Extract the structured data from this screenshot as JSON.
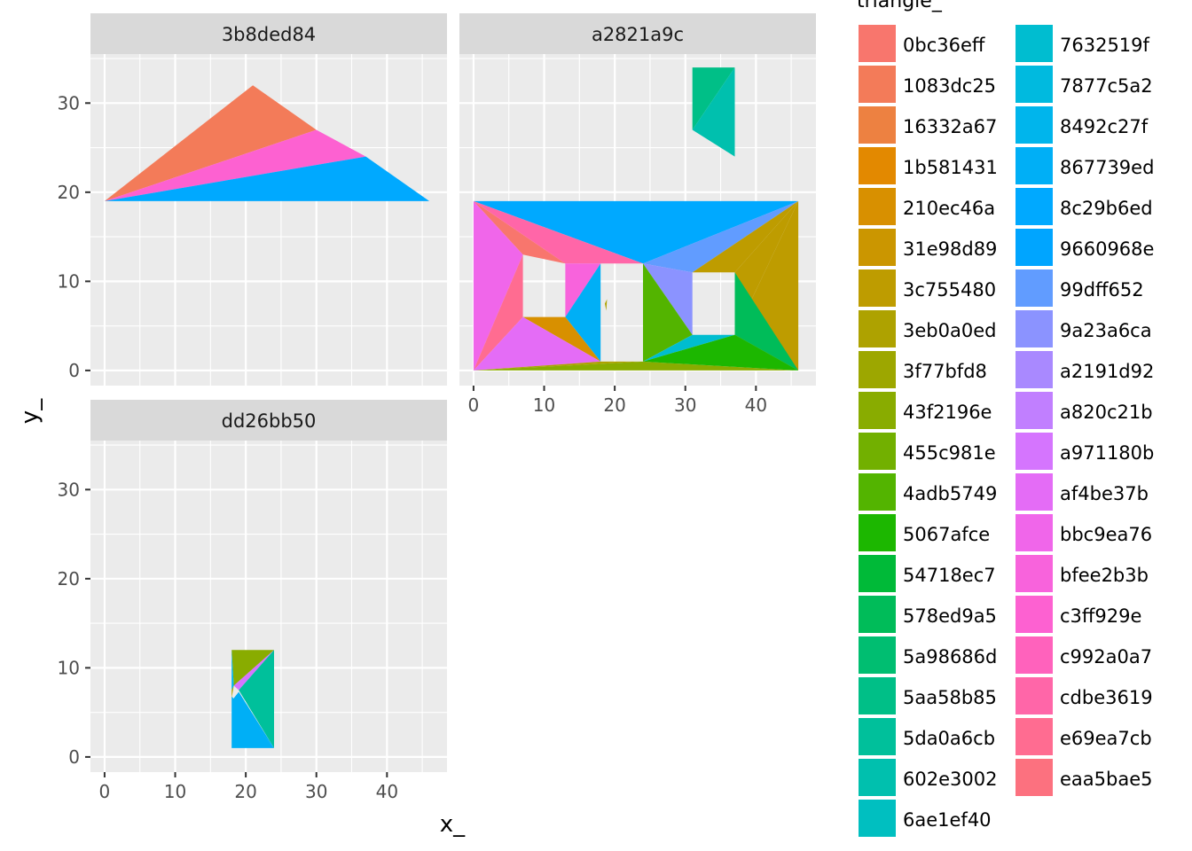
{
  "chart_data": {
    "type": "polygon",
    "xlabel": "x_",
    "ylabel": "y_",
    "legend_title": "triangle_",
    "legend_position": "right",
    "grid": true,
    "xlim": [
      -2,
      48.5
    ],
    "ylim": [
      -1.7,
      35.5
    ],
    "x_ticks": [
      0,
      10,
      20,
      30,
      40
    ],
    "y_ticks": [
      0,
      10,
      20,
      30
    ],
    "legend": [
      {
        "label": "0bc36eff",
        "color": "#F8766D"
      },
      {
        "label": "1083dc25",
        "color": "#F37B59"
      },
      {
        "label": "16332a67",
        "color": "#ED8141"
      },
      {
        "label": "1b581431",
        "color": "#E38900"
      },
      {
        "label": "210ec46a",
        "color": "#D89000"
      },
      {
        "label": "31e98d89",
        "color": "#CB9600"
      },
      {
        "label": "3c755480",
        "color": "#BE9C00"
      },
      {
        "label": "3eb0a0ed",
        "color": "#AEA200"
      },
      {
        "label": "3f77bfd8",
        "color": "#9DA700"
      },
      {
        "label": "43f2196e",
        "color": "#89AC00"
      },
      {
        "label": "455c981e",
        "color": "#72B000"
      },
      {
        "label": "4adb5749",
        "color": "#53B400"
      },
      {
        "label": "5067afce",
        "color": "#1CB700"
      },
      {
        "label": "54718ec7",
        "color": "#00BA38"
      },
      {
        "label": "578ed9a5",
        "color": "#00BC59"
      },
      {
        "label": "5a98686d",
        "color": "#00BE71"
      },
      {
        "label": "5aa58b85",
        "color": "#00BF87"
      },
      {
        "label": "5da0a6cb",
        "color": "#00C09B"
      },
      {
        "label": "602e3002",
        "color": "#00C0AE"
      },
      {
        "label": "6ae1ef40",
        "color": "#00BFC0"
      },
      {
        "label": "7632519f",
        "color": "#00BDD0"
      },
      {
        "label": "7877c5a2",
        "color": "#00BADF"
      },
      {
        "label": "8492c27f",
        "color": "#00B5EC"
      },
      {
        "label": "867739ed",
        "color": "#00AFF6"
      },
      {
        "label": "8c29b6ed",
        "color": "#00A9FF"
      },
      {
        "label": "9660968e",
        "color": "#00A5FF"
      },
      {
        "label": "99dff652",
        "color": "#619CFF"
      },
      {
        "label": "9a23a6ca",
        "color": "#8B93FF"
      },
      {
        "label": "a2191d92",
        "color": "#A989FF"
      },
      {
        "label": "a820c21b",
        "color": "#C17FFF"
      },
      {
        "label": "a971180b",
        "color": "#D575FE"
      },
      {
        "label": "af4be37b",
        "color": "#E46CF6"
      },
      {
        "label": "bbc9ea76",
        "color": "#F066EA"
      },
      {
        "label": "bfee2b3b",
        "color": "#F863DC"
      },
      {
        "label": "c3ff929e",
        "color": "#FD61D1"
      },
      {
        "label": "c992a0a7",
        "color": "#FF62BC"
      },
      {
        "label": "cdbe3619",
        "color": "#FF66A8"
      },
      {
        "label": "e69ea7cb",
        "color": "#FF6C91"
      },
      {
        "label": "eaa5bae5",
        "color": "#FC717F"
      }
    ],
    "panels": [
      {
        "name": "3b8ded84",
        "triangles": [
          {
            "fill": "1083dc25",
            "points": [
              [
                0,
                19
              ],
              [
                21,
                32
              ],
              [
                30,
                27
              ]
            ]
          },
          {
            "fill": "c3ff929e",
            "points": [
              [
                0,
                19
              ],
              [
                30,
                27
              ],
              [
                37,
                24
              ]
            ]
          },
          {
            "fill": "8c29b6ed",
            "points": [
              [
                0,
                19
              ],
              [
                37,
                24
              ],
              [
                46,
                19
              ]
            ]
          }
        ]
      },
      {
        "name": "a2821a9c",
        "triangles": [
          {
            "fill": "8c29b6ed",
            "points": [
              [
                0,
                19
              ],
              [
                46,
                19
              ],
              [
                24,
                12
              ]
            ]
          },
          {
            "fill": "0bc36eff",
            "points": [
              [
                0,
                19
              ],
              [
                7,
                13
              ],
              [
                13,
                12
              ]
            ]
          },
          {
            "fill": "cdbe3619",
            "points": [
              [
                0,
                19
              ],
              [
                13,
                12
              ],
              [
                24,
                12
              ]
            ]
          },
          {
            "fill": "bbc9ea76",
            "points": [
              [
                0,
                19
              ],
              [
                7,
                13
              ],
              [
                0,
                0
              ]
            ]
          },
          {
            "fill": "e69ea7cb",
            "points": [
              [
                7,
                13
              ],
              [
                7,
                6
              ],
              [
                0,
                0
              ]
            ]
          },
          {
            "fill": "bfee2b3b",
            "points": [
              [
                13,
                12
              ],
              [
                13,
                6
              ],
              [
                18,
                12
              ]
            ]
          },
          {
            "fill": "867739ed",
            "points": [
              [
                13,
                6
              ],
              [
                18,
                12
              ],
              [
                18,
                1
              ]
            ]
          },
          {
            "fill": "210ec46a",
            "points": [
              [
                7,
                6
              ],
              [
                13,
                6
              ],
              [
                18,
                1
              ]
            ]
          },
          {
            "fill": "af4be37b",
            "points": [
              [
                0,
                0
              ],
              [
                7,
                6
              ],
              [
                18,
                1
              ]
            ]
          },
          {
            "fill": "3eb0a0ed",
            "points": [
              [
                0,
                0
              ],
              [
                18,
                1
              ],
              [
                24,
                1
              ]
            ]
          },
          {
            "fill": "43f2196e",
            "points": [
              [
                0,
                0
              ],
              [
                24,
                1
              ],
              [
                46,
                0
              ]
            ]
          },
          {
            "fill": "99dff652",
            "points": [
              [
                24,
                12
              ],
              [
                31,
                11
              ],
              [
                46,
                19
              ]
            ]
          },
          {
            "fill": "3c755480",
            "points": [
              [
                37,
                11
              ],
              [
                46,
                19
              ],
              [
                31,
                11
              ]
            ]
          },
          {
            "fill": "3c755480",
            "points": [
              [
                37,
                11
              ],
              [
                37,
                4
              ],
              [
                46,
                19
              ]
            ]
          },
          {
            "fill": "3c755480",
            "points": [
              [
                37,
                4
              ],
              [
                46,
                0
              ],
              [
                46,
                19
              ]
            ]
          },
          {
            "fill": "9a23a6ca",
            "points": [
              [
                24,
                12
              ],
              [
                31,
                11
              ],
              [
                31,
                4
              ]
            ]
          },
          {
            "fill": "4adb5749",
            "points": [
              [
                24,
                12
              ],
              [
                24,
                1
              ],
              [
                31,
                4
              ]
            ]
          },
          {
            "fill": "578ed9a5",
            "points": [
              [
                37,
                11
              ],
              [
                37,
                4
              ],
              [
                46,
                0
              ]
            ]
          },
          {
            "fill": "7632519f",
            "points": [
              [
                24,
                1
              ],
              [
                31,
                4
              ],
              [
                37,
                4
              ]
            ]
          },
          {
            "fill": "5067afce",
            "points": [
              [
                24,
                1
              ],
              [
                37,
                4
              ],
              [
                46,
                0
              ]
            ]
          },
          {
            "fill": "5aa58b85",
            "points": [
              [
                31,
                34
              ],
              [
                37,
                34
              ],
              [
                31,
                27
              ]
            ]
          },
          {
            "fill": "602e3002",
            "points": [
              [
                37,
                34
              ],
              [
                31,
                27
              ],
              [
                37,
                24
              ]
            ]
          },
          {
            "fill": "3eb0a0ed",
            "points": [
              [
                18.6,
                7.5
              ],
              [
                18.9,
                8.0
              ],
              [
                18.8,
                6.7
              ]
            ]
          }
        ]
      },
      {
        "name": "dd26bb50",
        "triangles": [
          {
            "fill": "43f2196e",
            "points": [
              [
                18,
                12
              ],
              [
                24,
                12
              ],
              [
                18.3,
                8
              ]
            ]
          },
          {
            "fill": "a971180b",
            "points": [
              [
                18.3,
                8
              ],
              [
                24,
                12
              ],
              [
                19,
                7.5
              ]
            ]
          },
          {
            "fill": "5da0a6cb",
            "points": [
              [
                19,
                7.5
              ],
              [
                24,
                12
              ],
              [
                24,
                1
              ]
            ]
          },
          {
            "fill": "867739ed",
            "points": [
              [
                18,
                6.8
              ],
              [
                24,
                1
              ],
              [
                18,
                1
              ]
            ]
          },
          {
            "fill": "867739ed",
            "points": [
              [
                18.2,
                6.5
              ],
              [
                19,
                7.3
              ],
              [
                24,
                1
              ]
            ]
          },
          {
            "fill": "8492c27f",
            "points": [
              [
                18,
                12
              ],
              [
                18.3,
                8
              ],
              [
                18,
                7.5
              ]
            ]
          },
          {
            "fill": "3eb0a0ed",
            "points": [
              [
                18,
                7.5
              ],
              [
                18.3,
                8
              ],
              [
                18,
                6.6
              ]
            ]
          }
        ]
      }
    ]
  }
}
